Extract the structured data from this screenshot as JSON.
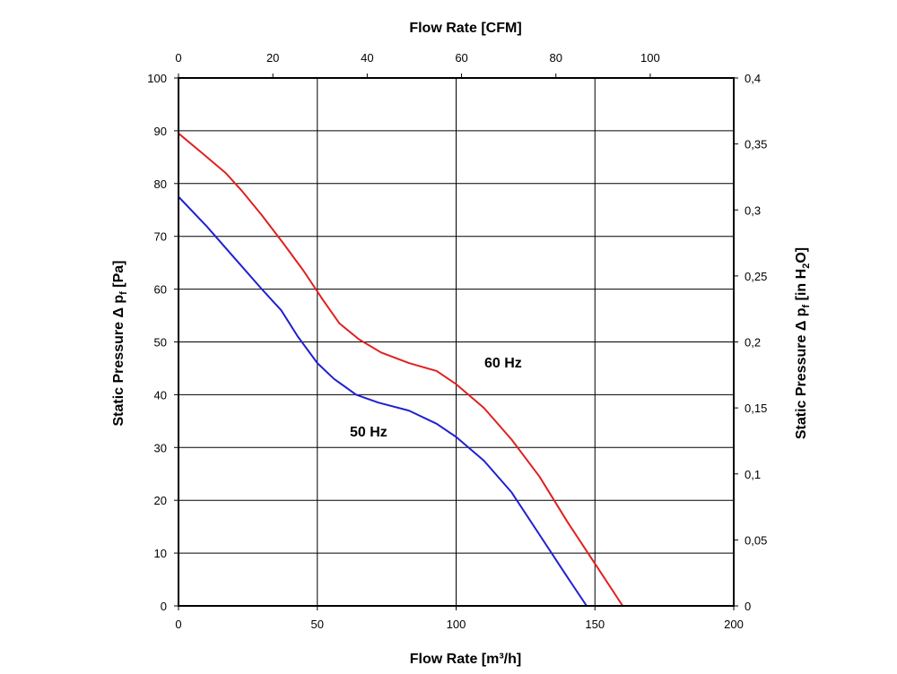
{
  "chart_data": {
    "type": "line",
    "x": {
      "label": "Flow Rate [m³/h]",
      "range": [
        0,
        200
      ],
      "ticks": [
        0,
        50,
        100,
        150,
        200
      ],
      "grid": true
    },
    "x2": {
      "label": "Flow Rate [CFM]",
      "range": [
        0,
        117.7
      ],
      "ticks": [
        0,
        20,
        40,
        60,
        80,
        100
      ]
    },
    "y": {
      "label": "Static Pressure Δ p",
      "label_sub": "f",
      "label_unit": " [Pa]",
      "range": [
        0,
        100
      ],
      "ticks": [
        0,
        10,
        20,
        30,
        40,
        50,
        60,
        70,
        80,
        90,
        100
      ],
      "grid": true
    },
    "y2": {
      "label": "Static Pressure Δ p",
      "label_sub": "f",
      "label_unit_a": " [in H",
      "label_unit_sub": "2",
      "label_unit_b": "O]",
      "range": [
        0,
        0.4
      ],
      "ticks": [
        "0",
        "0,05",
        "0,1",
        "0,15",
        "0,2",
        "0,25",
        "0,3",
        "0,35",
        "0,4"
      ]
    },
    "series": [
      {
        "name": "60 Hz",
        "color": "#e02020",
        "x": [
          0,
          8,
          17,
          23,
          30,
          38,
          45,
          52,
          58,
          65,
          73,
          83,
          93,
          100,
          110,
          120,
          130,
          140,
          150,
          160,
          170
        ],
        "y": [
          89.5,
          86,
          82,
          78.5,
          74,
          68.5,
          63.5,
          58,
          53.5,
          50.5,
          48,
          46,
          44.5,
          42,
          37.5,
          31.5,
          24.5,
          16,
          8,
          0,
          0
        ]
      },
      {
        "name": "50 Hz",
        "color": "#2020d0",
        "x": [
          0,
          10,
          20,
          30,
          37,
          43,
          50,
          56,
          64,
          72,
          83,
          93,
          100,
          110,
          120,
          130,
          140,
          147
        ],
        "y": [
          77.5,
          72,
          66,
          60,
          56,
          51,
          46,
          43,
          40,
          38.5,
          37,
          34.5,
          32,
          27.5,
          21.5,
          13.5,
          5.5,
          0
        ]
      }
    ]
  }
}
